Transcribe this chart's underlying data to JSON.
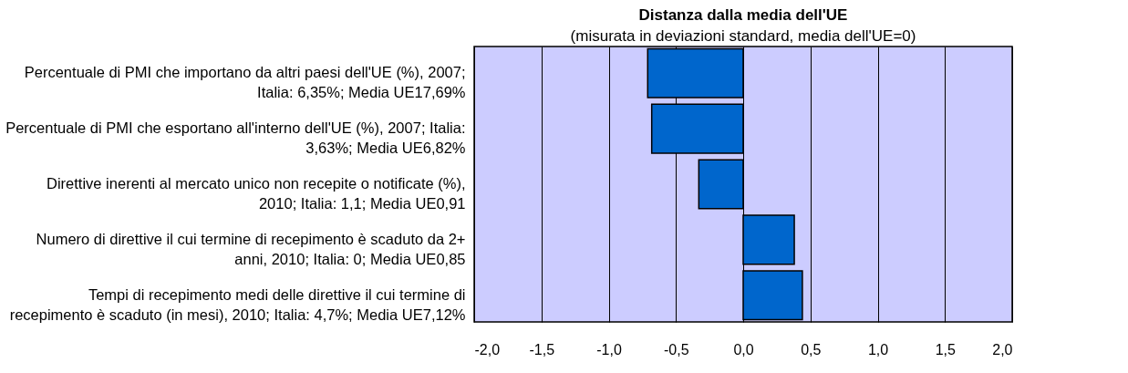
{
  "chart_data": {
    "type": "bar",
    "orientation": "horizontal",
    "title": "Distanza dalla media dell'UE",
    "subtitle": "(misurata in deviazioni standard, media dell'UE=0)",
    "categories": [
      "Percentuale di PMI che importano da altri paesi dell'UE (%), 2007;\nItalia: 6,35%; Media UE17,69%",
      "Percentuale di PMI che esportano all'interno dell'UE (%), 2007; Italia:\n3,63%; Media UE6,82%",
      "Direttive inerenti al mercato unico non recepite o notificate (%),\n2010; Italia: 1,1; Media UE0,91",
      "Numero di direttive il cui termine di recepimento è scaduto da 2+\nanni, 2010; Italia: 0; Media UE0,85",
      "Tempi di recepimento medi delle direttive il cui termine di\nrecepimento è scaduto (in mesi), 2010; Italia: 4,7%; Media UE7,12%"
    ],
    "values": [
      -0.71,
      -0.68,
      -0.33,
      0.38,
      0.44
    ],
    "color": "#0066cc",
    "xlim": [
      -2,
      2
    ],
    "xticks": [
      {
        "value": -2,
        "label": "-2,0"
      },
      {
        "value": -1.5,
        "label": "-1,5"
      },
      {
        "value": -1,
        "label": "-1,0"
      },
      {
        "value": -0.5,
        "label": "-0,5"
      },
      {
        "value": 0,
        "label": "0,0"
      },
      {
        "value": 0.5,
        "label": "0,5"
      },
      {
        "value": 1,
        "label": "1,0"
      },
      {
        "value": 1.5,
        "label": "1,5"
      },
      {
        "value": 2,
        "label": "2,0"
      }
    ],
    "grid": "x"
  }
}
